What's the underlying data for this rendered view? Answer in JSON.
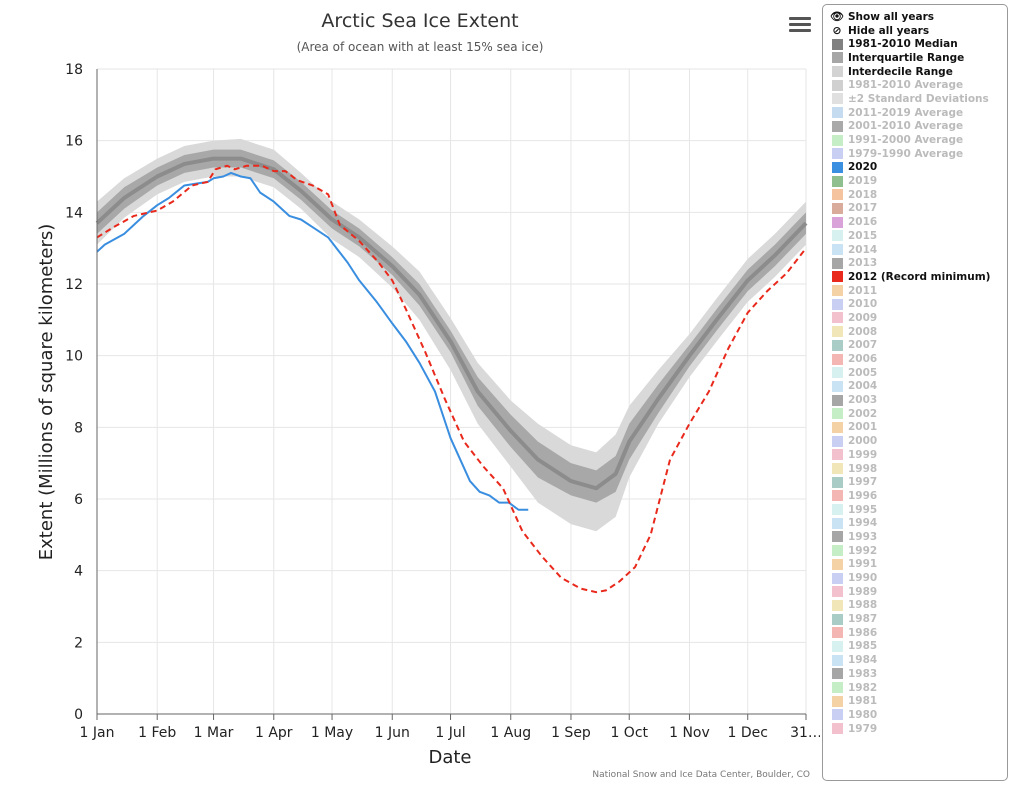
{
  "chart_data": {
    "type": "line",
    "title": "Arctic Sea Ice Extent",
    "subtitle": "(Area of ocean with at least 15% sea ice)",
    "xlabel": "Date",
    "ylabel": "Extent (Millions of square kilometers)",
    "ylim": [
      0,
      18
    ],
    "yticks": [
      0,
      2,
      4,
      6,
      8,
      10,
      12,
      14,
      16,
      18
    ],
    "xlim": [
      1,
      366
    ],
    "xticks": [
      {
        "day": 1,
        "label": "1 Jan"
      },
      {
        "day": 32,
        "label": "1 Feb"
      },
      {
        "day": 61,
        "label": "1 Mar"
      },
      {
        "day": 92,
        "label": "1 Apr"
      },
      {
        "day": 122,
        "label": "1 May"
      },
      {
        "day": 153,
        "label": "1 Jun"
      },
      {
        "day": 183,
        "label": "1 Jul"
      },
      {
        "day": 214,
        "label": "1 Aug"
      },
      {
        "day": 245,
        "label": "1 Sep"
      },
      {
        "day": 275,
        "label": "1 Oct"
      },
      {
        "day": 306,
        "label": "1 Nov"
      },
      {
        "day": 336,
        "label": "1 Dec"
      },
      {
        "day": 366,
        "label": "31…"
      }
    ],
    "grid": true,
    "legend_position": "right",
    "median": {
      "name": "1981-2010 Median",
      "color": "#8c8c8c",
      "x": [
        1,
        15,
        32,
        46,
        61,
        75,
        92,
        106,
        122,
        136,
        153,
        167,
        183,
        197,
        214,
        228,
        245,
        258,
        268,
        275,
        290,
        306,
        320,
        336,
        350,
        366
      ],
      "y": [
        13.7,
        14.4,
        15.0,
        15.35,
        15.5,
        15.5,
        15.2,
        14.6,
        13.8,
        13.3,
        12.5,
        11.7,
        10.4,
        9.0,
        7.9,
        7.1,
        6.5,
        6.3,
        6.7,
        7.6,
        8.8,
        10.0,
        11.0,
        12.1,
        12.8,
        13.7
      ]
    },
    "interquartile": {
      "name": "Interquartile Range",
      "color": "#a8a8a8",
      "lower": [
        13.4,
        14.1,
        14.75,
        15.1,
        15.25,
        15.25,
        14.95,
        14.35,
        13.55,
        13.05,
        12.25,
        11.4,
        10.1,
        8.6,
        7.45,
        6.6,
        6.1,
        5.9,
        6.2,
        7.1,
        8.4,
        9.7,
        10.7,
        11.8,
        12.5,
        13.4
      ],
      "upper": [
        14.0,
        14.7,
        15.25,
        15.6,
        15.75,
        15.75,
        15.45,
        14.85,
        14.05,
        13.55,
        12.75,
        12.0,
        10.7,
        9.4,
        8.35,
        7.6,
        7.0,
        6.8,
        7.2,
        8.1,
        9.2,
        10.3,
        11.3,
        12.4,
        13.1,
        14.0
      ]
    },
    "interdecile": {
      "name": "Interdecile Range",
      "color": "#d9d9d9",
      "lower": [
        13.1,
        13.85,
        14.5,
        14.85,
        15.0,
        15.0,
        14.7,
        14.1,
        13.25,
        12.75,
        11.9,
        11.0,
        9.6,
        8.1,
        6.9,
        5.9,
        5.3,
        5.1,
        5.5,
        6.6,
        8.1,
        9.4,
        10.4,
        11.5,
        12.2,
        13.1
      ],
      "upper": [
        14.3,
        14.95,
        15.5,
        15.85,
        16.0,
        16.05,
        15.75,
        15.1,
        14.3,
        13.8,
        13.05,
        12.35,
        11.05,
        9.8,
        8.75,
        8.1,
        7.5,
        7.3,
        7.8,
        8.6,
        9.6,
        10.6,
        11.6,
        12.7,
        13.4,
        14.3
      ]
    },
    "series": [
      {
        "name": "2020",
        "color": "#3a8ee0",
        "dash": "solid",
        "x": [
          1,
          5,
          15,
          25,
          32,
          38,
          46,
          52,
          58,
          61,
          66,
          70,
          75,
          80,
          85,
          92,
          100,
          106,
          113,
          120,
          125,
          130,
          136,
          145,
          153,
          160,
          167,
          175,
          183,
          188,
          193,
          198,
          203,
          208,
          213,
          218,
          223
        ],
        "y": [
          12.9,
          13.1,
          13.4,
          13.9,
          14.2,
          14.4,
          14.75,
          14.8,
          14.85,
          14.95,
          15.0,
          15.1,
          15.0,
          14.95,
          14.55,
          14.3,
          13.9,
          13.8,
          13.55,
          13.3,
          12.95,
          12.6,
          12.1,
          11.5,
          10.9,
          10.4,
          9.8,
          9.0,
          7.7,
          7.1,
          6.5,
          6.2,
          6.1,
          5.9,
          5.9,
          5.7,
          5.7
        ]
      },
      {
        "name": "2012 (Record minimum)",
        "color": "#e8291c",
        "dash": "dashed",
        "x": [
          1,
          10,
          20,
          32,
          40,
          50,
          58,
          62,
          68,
          72,
          78,
          86,
          92,
          98,
          104,
          112,
          120,
          126,
          136,
          146,
          153,
          160,
          170,
          180,
          190,
          200,
          210,
          220,
          230,
          240,
          250,
          258,
          263,
          270,
          278,
          286,
          296,
          306,
          316,
          326,
          336,
          346,
          356,
          366
        ],
        "y": [
          13.3,
          13.6,
          13.9,
          14.05,
          14.3,
          14.75,
          14.85,
          15.2,
          15.3,
          15.2,
          15.3,
          15.3,
          15.15,
          15.15,
          14.9,
          14.75,
          14.5,
          13.65,
          13.2,
          12.6,
          12.1,
          11.3,
          10.1,
          8.8,
          7.6,
          6.9,
          6.3,
          5.1,
          4.4,
          3.8,
          3.5,
          3.4,
          3.45,
          3.7,
          4.1,
          5.0,
          7.1,
          8.1,
          9.0,
          10.2,
          11.2,
          11.8,
          12.3,
          13.0
        ]
      }
    ]
  },
  "menu": {
    "icon": "hamburger-menu-icon"
  },
  "legend": {
    "show_all_label": "Show all years",
    "hide_all_label": "Hide all years",
    "items": [
      {
        "label": "1981-2010 Median",
        "color": "#808080",
        "active": true
      },
      {
        "label": "Interquartile Range",
        "color": "#a6a6a6",
        "active": true
      },
      {
        "label": "Interdecile Range",
        "color": "#d3d3d3",
        "active": true
      },
      {
        "label": "1981-2010 Average",
        "color": "#d0d0d0",
        "active": false
      },
      {
        "label": "±2 Standard Deviations",
        "color": "#e0e0e0",
        "active": false
      },
      {
        "label": "2011-2019 Average",
        "color": "#c5dcf0",
        "active": false
      },
      {
        "label": "2001-2010 Average",
        "color": "#a9a9a9",
        "active": false
      },
      {
        "label": "1991-2000 Average",
        "color": "#c6eec6",
        "active": false
      },
      {
        "label": "1979-1990 Average",
        "color": "#c9cff3",
        "active": false
      },
      {
        "label": "2020",
        "color": "#3b8fe0",
        "active": true
      },
      {
        "label": "2019",
        "color": "#8fbf8f",
        "active": false
      },
      {
        "label": "2018",
        "color": "#f5c39e",
        "active": false
      },
      {
        "label": "2017",
        "color": "#d9ab9b",
        "active": false
      },
      {
        "label": "2016",
        "color": "#d9a3d9",
        "active": false
      },
      {
        "label": "2015",
        "color": "#d7f0f0",
        "active": false
      },
      {
        "label": "2014",
        "color": "#c9e3f5",
        "active": false
      },
      {
        "label": "2013",
        "color": "#a6a6a6",
        "active": false
      },
      {
        "label": "2012 (Record minimum)",
        "color": "#e8291c",
        "active": true
      },
      {
        "label": "2011",
        "color": "#f5d2a6",
        "active": false
      },
      {
        "label": "2010",
        "color": "#c9cff3",
        "active": false
      },
      {
        "label": "2009",
        "color": "#f3c1cd",
        "active": false
      },
      {
        "label": "2008",
        "color": "#f0e6b8",
        "active": false
      },
      {
        "label": "2007",
        "color": "#a9ccc6",
        "active": false
      },
      {
        "label": "2006",
        "color": "#f3b6b3",
        "active": false
      },
      {
        "label": "2005",
        "color": "#d7f0f0",
        "active": false
      },
      {
        "label": "2004",
        "color": "#c9e3f5",
        "active": false
      },
      {
        "label": "2003",
        "color": "#a6a6a6",
        "active": false
      },
      {
        "label": "2002",
        "color": "#c6eec6",
        "active": false
      },
      {
        "label": "2001",
        "color": "#f5d2a6",
        "active": false
      },
      {
        "label": "2000",
        "color": "#c9cff3",
        "active": false
      },
      {
        "label": "1999",
        "color": "#f3c1cd",
        "active": false
      },
      {
        "label": "1998",
        "color": "#f0e6b8",
        "active": false
      },
      {
        "label": "1997",
        "color": "#a9ccc6",
        "active": false
      },
      {
        "label": "1996",
        "color": "#f3b6b3",
        "active": false
      },
      {
        "label": "1995",
        "color": "#d7f0f0",
        "active": false
      },
      {
        "label": "1994",
        "color": "#c9e3f5",
        "active": false
      },
      {
        "label": "1993",
        "color": "#a6a6a6",
        "active": false
      },
      {
        "label": "1992",
        "color": "#c6eec6",
        "active": false
      },
      {
        "label": "1991",
        "color": "#f5d2a6",
        "active": false
      },
      {
        "label": "1990",
        "color": "#c9cff3",
        "active": false
      },
      {
        "label": "1989",
        "color": "#f3c1cd",
        "active": false
      },
      {
        "label": "1988",
        "color": "#f0e6b8",
        "active": false
      },
      {
        "label": "1987",
        "color": "#a9ccc6",
        "active": false
      },
      {
        "label": "1986",
        "color": "#f3b6b3",
        "active": false
      },
      {
        "label": "1985",
        "color": "#d7f0f0",
        "active": false
      },
      {
        "label": "1984",
        "color": "#c9e3f5",
        "active": false
      },
      {
        "label": "1983",
        "color": "#a6a6a6",
        "active": false
      },
      {
        "label": "1982",
        "color": "#c6eec6",
        "active": false
      },
      {
        "label": "1981",
        "color": "#f5d2a6",
        "active": false
      },
      {
        "label": "1980",
        "color": "#c9cff3",
        "active": false
      },
      {
        "label": "1979",
        "color": "#f3c1cd",
        "active": false
      }
    ]
  },
  "credit": "National Snow and Ice Data Center, Boulder, CO"
}
